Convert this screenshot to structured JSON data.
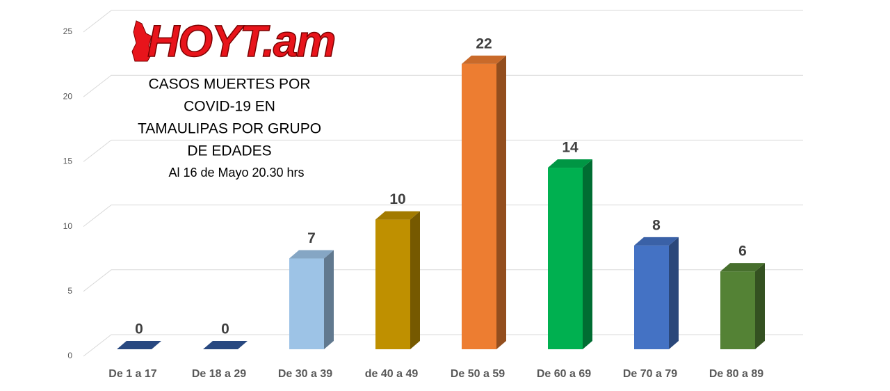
{
  "chart_data": {
    "type": "bar3d",
    "logo": "HOYT.am",
    "title": [
      "CASOS MUERTES POR",
      "COVID-19 EN",
      "TAMAULIPAS POR GRUPO",
      "DE EDADES"
    ],
    "subtitle": "Al 16 de Mayo 20.30 hrs",
    "categories": [
      "De 1 a 17",
      "De 18 a 29",
      "De 30 a 39",
      "de 40 a 49",
      "De 50 a 59",
      "De 60 a 69",
      "De 70 a 79",
      "De 80 a 89"
    ],
    "values": [
      0,
      0,
      7,
      10,
      22,
      14,
      8,
      6
    ],
    "colors": [
      "#2f5597",
      "#2f5597",
      "#9dc3e6",
      "#bf9000",
      "#ed7d31",
      "#00b050",
      "#4472c4",
      "#548235"
    ],
    "ylim": [
      0,
      25
    ],
    "yticks": [
      0,
      5,
      10,
      15,
      20,
      25
    ],
    "grid": true
  }
}
